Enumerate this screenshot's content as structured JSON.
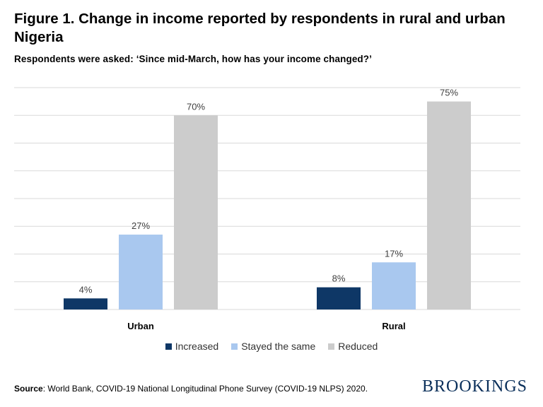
{
  "title": "Figure 1. Change in income reported by respondents in rural and urban Nigeria",
  "subtitle": "Respondents were asked: ‘Since mid-March, how has your income changed?’",
  "colors": {
    "increased": "#0e3766",
    "stayed_the_same": "#a9c8ef",
    "reduced": "#cccccc",
    "gridline": "#d9d9d9"
  },
  "chart_data": {
    "type": "bar",
    "title": "Figure 1. Change in income reported by respondents in rural and urban Nigeria",
    "categories": [
      "Urban",
      "Rural"
    ],
    "series": [
      {
        "name": "Increased",
        "values": [
          4,
          8
        ],
        "labels": [
          "4%",
          "8%"
        ]
      },
      {
        "name": "Stayed the same",
        "values": [
          27,
          17
        ],
        "labels": [
          "27%",
          "17%"
        ]
      },
      {
        "name": "Reduced",
        "values": [
          70,
          75
        ],
        "labels": [
          "70%",
          "75%"
        ]
      }
    ],
    "ylim": [
      0,
      80
    ],
    "ytick_step": 10,
    "grid": true,
    "legend_position": "bottom"
  },
  "legend": {
    "items": [
      "Increased",
      "Stayed the same",
      "Reduced"
    ]
  },
  "footer": {
    "source_label": "Source",
    "source_text": ": World Bank, COVID-19 National Longitudinal Phone Survey (COVID-19 NLPS) 2020."
  },
  "brand": "BROOKINGS"
}
